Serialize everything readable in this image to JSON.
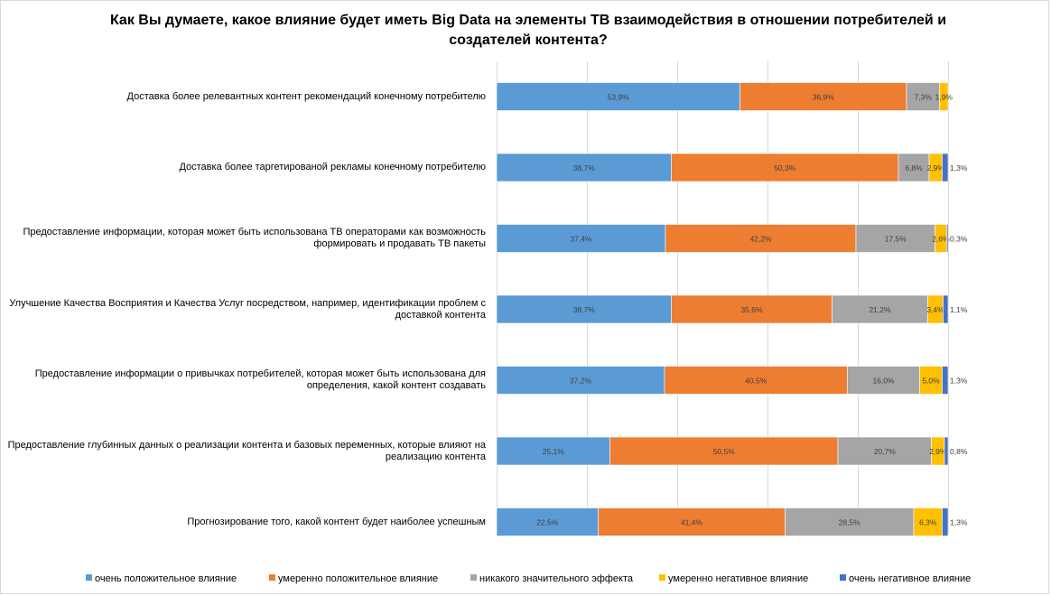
{
  "chart_data": {
    "type": "bar",
    "orientation": "horizontal",
    "stacked": "100%",
    "title": "Как Вы думаете, какое влияние будет иметь Big Data на элементы ТВ взаимодействия в отношении потребителей и\nсоздателей контента?",
    "categories": [
      "Доставка более релевантных контент рекомендаций конечному потребителю",
      "Доставка более таргетированой рекламы конечному потребителю",
      "Предоставление информации, которая может быть использована ТВ операторами как возможность\nформировать и продавать ТВ пакеты",
      "Улучшение Качества Восприятия и Качества Услуг посредством, например, идентификации проблем с\nдоставкой контента",
      "Предоставление информации о привычках потребителей, которая может быть использована для\nопределения, какой контент создавать",
      "Предоставление глубинных данных о реализации контента и базовых переменных, которые влияют на\nреализацию контента",
      "Прогнозирование того, какой контент будет наиболее успешным"
    ],
    "series": [
      {
        "name": "очень положительное влияние",
        "color": "#5b9bd5",
        "values": [
          53.9,
          38.7,
          37.4,
          38.7,
          37.2,
          25.1,
          22.5
        ],
        "labels": [
          "53,9%",
          "38,7%",
          "37,4%",
          "38,7%",
          "37,2%",
          "25,1%",
          "22,5%"
        ]
      },
      {
        "name": "умеренно положительное влияние",
        "color": "#ed7d31",
        "values": [
          36.9,
          50.3,
          42.2,
          35.6,
          40.5,
          50.5,
          41.4
        ],
        "labels": [
          "36,9%",
          "50,3%",
          "42,2%",
          "35,6%",
          "40,5%",
          "50,5%",
          "41,4%"
        ]
      },
      {
        "name": "никакого значительного эффекта",
        "color": "#a5a5a5",
        "values": [
          7.3,
          6.8,
          17.5,
          21.2,
          16.0,
          20.7,
          28.5
        ],
        "labels": [
          "7,3%",
          "6,8%",
          "17,5%",
          "21,2%",
          "16,0%",
          "20,7%",
          "28,5%"
        ]
      },
      {
        "name": "умеренно негативное влияние",
        "color": "#ffc000",
        "values": [
          1.9,
          2.9,
          2.6,
          3.4,
          5.0,
          2.9,
          6.3
        ],
        "labels": [
          "1,9%",
          "2,9%",
          "2,6%",
          "3,4%",
          "5,0%",
          "2,9%",
          "6,3%"
        ]
      },
      {
        "name": "очень негативное влияние",
        "color": "#4472c4",
        "values": [
          0,
          1.3,
          0.3,
          1.1,
          1.3,
          0.8,
          1.3
        ],
        "labels": [
          "",
          "1,3%",
          "0,3%",
          "1,1%",
          "1,3%",
          "0,8%",
          "1,3%"
        ]
      }
    ],
    "xlim": [
      0,
      100
    ],
    "grid": true,
    "legend_position": "bottom"
  }
}
